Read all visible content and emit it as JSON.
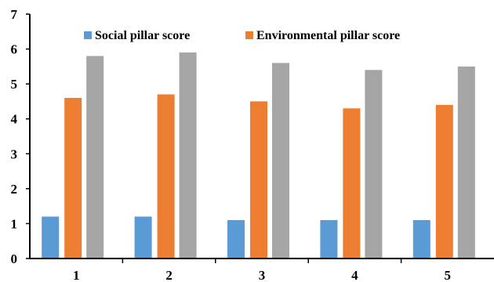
{
  "chart_data": {
    "type": "bar",
    "categories": [
      "1",
      "2",
      "3",
      "4",
      "5"
    ],
    "series": [
      {
        "name": "Social pillar score",
        "values": [
          1.2,
          1.2,
          1.1,
          1.1,
          1.1
        ],
        "color": "#5B9BD5"
      },
      {
        "name": "Environmental pillar score",
        "values": [
          4.6,
          4.7,
          4.5,
          4.3,
          4.4
        ],
        "color": "#ED7D31"
      },
      {
        "name": "",
        "values": [
          5.8,
          5.9,
          5.6,
          5.4,
          5.5
        ],
        "color": "#A5A5A5"
      }
    ],
    "ylim": [
      0,
      7
    ],
    "yticks": [
      "0",
      "1",
      "2",
      "3",
      "4",
      "5",
      "6",
      "7"
    ],
    "grid": false,
    "legend_position": "top"
  }
}
